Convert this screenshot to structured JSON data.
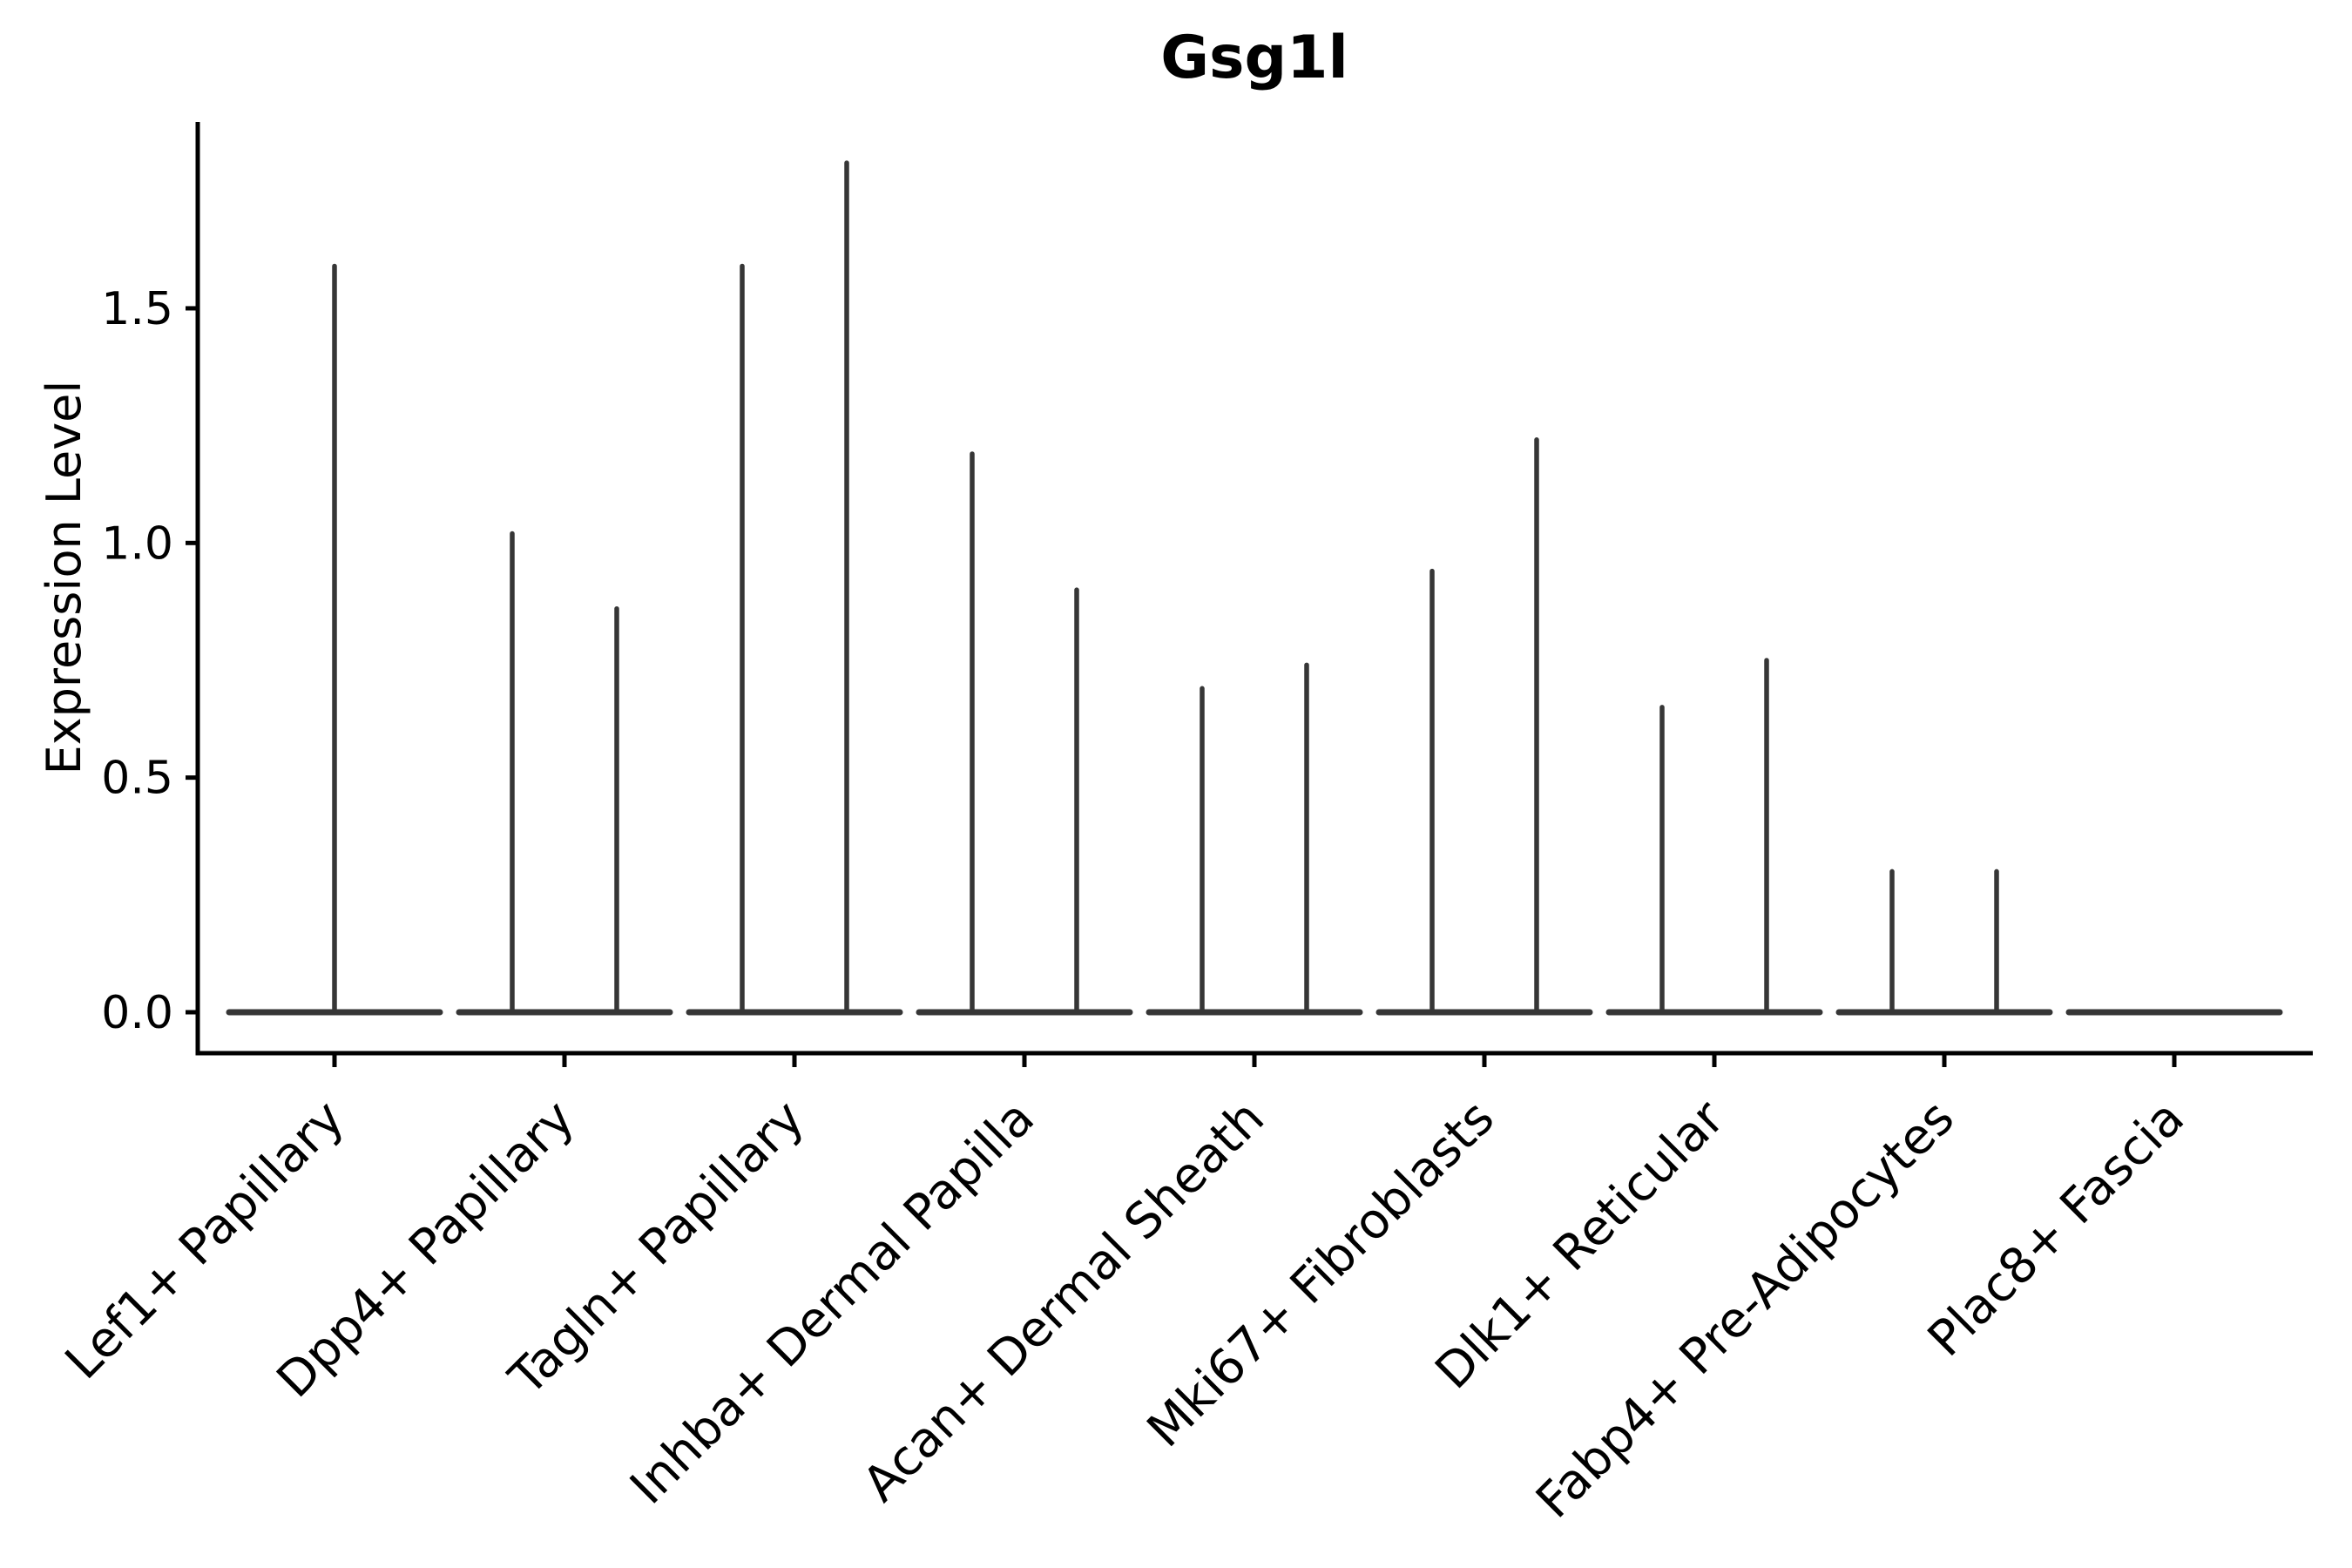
{
  "figure": {
    "background": "#ffffff"
  },
  "chart_data": {
    "type": "violin",
    "title": "Gsg1l",
    "xlabel": "",
    "ylabel": "Expression Level",
    "categories": [
      "Lef1+ Papillary",
      "Dpp4+ Papillary",
      "Tagln+ Papillary",
      "Inhba+ Dermal Papilla",
      "Acan+ Dermal Sheath",
      "Mki67+ Fibroblasts",
      "Dlk1+ Reticular",
      "Fabp4+ Pre-Adipocytes",
      "Plac8+ Fascia"
    ],
    "ylim": [
      -0.09,
      1.9
    ],
    "yticks": [
      0.0,
      0.5,
      1.0,
      1.5
    ],
    "ytick_labels": [
      "0.0",
      "0.5",
      "1.0",
      "1.5"
    ],
    "grid": false,
    "legend": null,
    "description": "Each category shows a flat violin body at expression 0 with thin density spikes rising to the maximum expression value(s).",
    "violins": [
      {
        "category": "Lef1+ Papillary",
        "baseline": 0.0,
        "spike_maxima": [
          1.59
        ]
      },
      {
        "category": "Dpp4+ Papillary",
        "baseline": 0.0,
        "spike_maxima": [
          1.02,
          0.86
        ]
      },
      {
        "category": "Tagln+ Papillary",
        "baseline": 0.0,
        "spike_maxima": [
          1.59,
          1.81
        ]
      },
      {
        "category": "Inhba+ Dermal Papilla",
        "baseline": 0.0,
        "spike_maxima": [
          1.19,
          0.9
        ]
      },
      {
        "category": "Acan+ Dermal Sheath",
        "baseline": 0.0,
        "spike_maxima": [
          0.69,
          0.74
        ]
      },
      {
        "category": "Mki67+ Fibroblasts",
        "baseline": 0.0,
        "spike_maxima": [
          0.94,
          1.22
        ]
      },
      {
        "category": "Dlk1+ Reticular",
        "baseline": 0.0,
        "spike_maxima": [
          0.65,
          0.75
        ]
      },
      {
        "category": "Fabp4+ Pre-Adipocytes",
        "baseline": 0.0,
        "spike_maxima": [
          0.3,
          0.3
        ]
      },
      {
        "category": "Plac8+ Fascia",
        "baseline": 0.0,
        "spike_maxima": []
      }
    ],
    "colors": {
      "violin": "#363636",
      "axis": "#000000",
      "text": "#000000"
    }
  }
}
